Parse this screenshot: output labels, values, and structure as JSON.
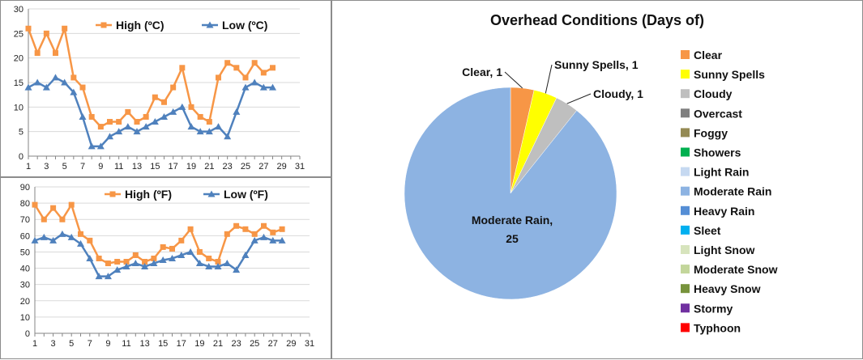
{
  "chart_data": [
    {
      "type": "line",
      "x": [
        1,
        2,
        3,
        4,
        5,
        6,
        7,
        8,
        9,
        10,
        11,
        12,
        13,
        14,
        15,
        16,
        17,
        18,
        19,
        20,
        21,
        22,
        23,
        24,
        25,
        26,
        27,
        28
      ],
      "x_ticks": [
        "1",
        "3",
        "5",
        "7",
        "9",
        "11",
        "13",
        "15",
        "17",
        "19",
        "21",
        "23",
        "25",
        "27",
        "29",
        "31"
      ],
      "y_ticks": [
        "0",
        "5",
        "10",
        "15",
        "20",
        "25",
        "30"
      ],
      "ylim": [
        0,
        30
      ],
      "xlim": [
        1,
        31
      ],
      "series": [
        {
          "name": "High (ºC)",
          "color": "#f79646",
          "marker": "square",
          "values": [
            26,
            21,
            25,
            21,
            26,
            16,
            14,
            8,
            6,
            7,
            7,
            9,
            7,
            8,
            12,
            11,
            14,
            18,
            10,
            8,
            7,
            16,
            19,
            18,
            16,
            19,
            17,
            18
          ]
        },
        {
          "name": "Low (ºC)",
          "color": "#4f81bd",
          "marker": "triangle",
          "values": [
            14,
            15,
            14,
            16,
            15,
            13,
            8,
            2,
            2,
            4,
            5,
            6,
            5,
            6,
            7,
            8,
            9,
            10,
            6,
            5,
            5,
            6,
            4,
            9,
            14,
            15,
            14,
            14
          ]
        }
      ],
      "legend": "top-right"
    },
    {
      "type": "line",
      "x": [
        1,
        2,
        3,
        4,
        5,
        6,
        7,
        8,
        9,
        10,
        11,
        12,
        13,
        14,
        15,
        16,
        17,
        18,
        19,
        20,
        21,
        22,
        23,
        24,
        25,
        26,
        27,
        28
      ],
      "x_ticks": [
        "1",
        "3",
        "5",
        "7",
        "9",
        "11",
        "13",
        "15",
        "17",
        "19",
        "21",
        "23",
        "25",
        "27",
        "29",
        "31"
      ],
      "y_ticks": [
        "0",
        "10",
        "20",
        "30",
        "40",
        "50",
        "60",
        "70",
        "80",
        "90"
      ],
      "ylim": [
        0,
        90
      ],
      "xlim": [
        1,
        31
      ],
      "series": [
        {
          "name": "High (ºF)",
          "color": "#f79646",
          "marker": "square",
          "values": [
            79,
            70,
            77,
            70,
            79,
            61,
            57,
            46,
            43,
            44,
            44,
            48,
            44,
            46,
            53,
            52,
            57,
            64,
            50,
            46,
            44,
            61,
            66,
            64,
            61,
            66,
            62,
            64
          ]
        },
        {
          "name": "Low (ºF)",
          "color": "#4f81bd",
          "marker": "triangle",
          "values": [
            57,
            59,
            57,
            61,
            59,
            55,
            46,
            35,
            35,
            39,
            41,
            43,
            41,
            43,
            45,
            46,
            48,
            50,
            43,
            41,
            41,
            43,
            39,
            48,
            57,
            59,
            57,
            57
          ]
        }
      ],
      "legend": "top-right"
    },
    {
      "type": "pie",
      "title": "Overhead Conditions (Days of)",
      "legend": "right",
      "slices": [
        {
          "label": "Clear",
          "value": 1,
          "color": "#f79646",
          "data_label": "Clear, 1"
        },
        {
          "label": "Sunny Spells",
          "value": 1,
          "color": "#ffff00",
          "data_label": "Sunny Spells, 1"
        },
        {
          "label": "Cloudy",
          "value": 1,
          "color": "#bfbfbf",
          "data_label": "Cloudy, 1"
        },
        {
          "label": "Overcast",
          "value": 0,
          "color": "#7f7f7f"
        },
        {
          "label": "Foggy",
          "value": 0,
          "color": "#948a54"
        },
        {
          "label": "Showers",
          "value": 0,
          "color": "#00b050"
        },
        {
          "label": "Light Rain",
          "value": 0,
          "color": "#c6d9f1"
        },
        {
          "label": "Moderate Rain",
          "value": 25,
          "color": "#8db3e2",
          "data_label_line1": "Moderate Rain,",
          "data_label_line2": "25"
        },
        {
          "label": "Heavy Rain",
          "value": 0,
          "color": "#558ed5"
        },
        {
          "label": "Sleet",
          "value": 0,
          "color": "#00b0f0"
        },
        {
          "label": "Light Snow",
          "value": 0,
          "color": "#d7e4bd"
        },
        {
          "label": "Moderate Snow",
          "value": 0,
          "color": "#c3d69b"
        },
        {
          "label": "Heavy Snow",
          "value": 0,
          "color": "#77933c"
        },
        {
          "label": "Stormy",
          "value": 0,
          "color": "#7030a0"
        },
        {
          "label": "Typhoon",
          "value": 0,
          "color": "#ff0000"
        }
      ]
    }
  ]
}
